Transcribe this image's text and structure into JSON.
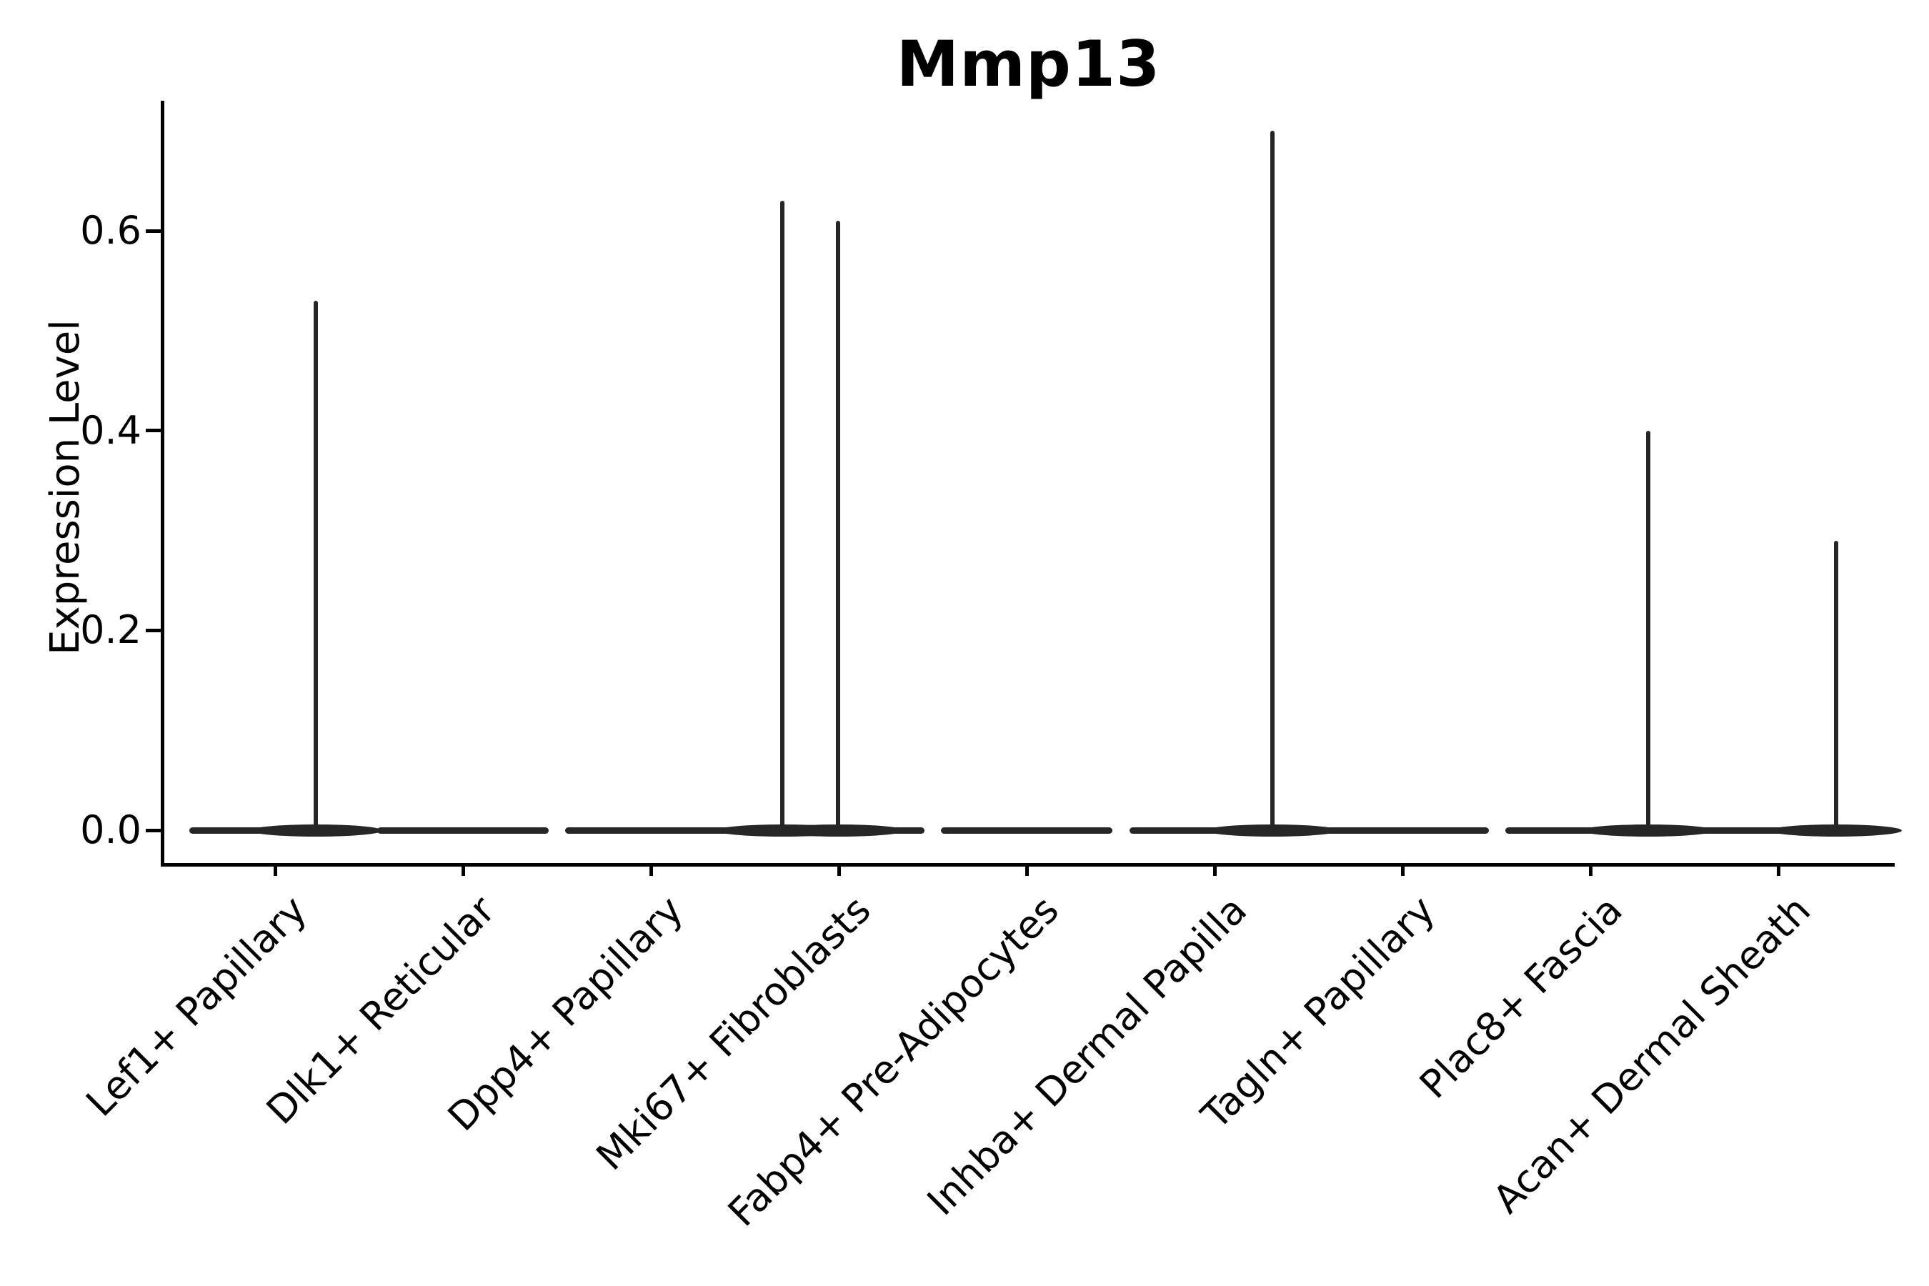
{
  "colors": {
    "background": "#ffffff",
    "axis": "#000000",
    "violin_line": "#262626",
    "text": "#000000"
  },
  "chart_data": {
    "type": "violin",
    "title": "Mmp13",
    "xlabel": "",
    "ylabel": "Expression Level",
    "ylim": [
      -0.03,
      0.73
    ],
    "grid": false,
    "legend": "none",
    "yticks": [
      {
        "label": "0.0",
        "value": 0.0
      },
      {
        "label": "0.2",
        "value": 0.2
      },
      {
        "label": "0.4",
        "value": 0.4
      },
      {
        "label": "0.6",
        "value": 0.6
      }
    ],
    "categories": [
      "Lef1+ Papillary",
      "Dlk1+ Reticular",
      "Dpp4+ Papillary",
      "Mki67+ Fibroblasts",
      "Fabp4+ Pre-Adipocytes",
      "Inhba+ Dermal Papilla",
      "Tagln+ Papillary",
      "Plac8+ Fascia",
      "Acan+ Dermal Sheath"
    ],
    "violins": [
      {
        "category": "Lef1+ Papillary",
        "base_value": 0.0,
        "spikes": [
          {
            "value": 0.53,
            "x_offset": 57
          }
        ]
      },
      {
        "category": "Dlk1+ Reticular",
        "base_value": 0.0,
        "spikes": []
      },
      {
        "category": "Dpp4+ Papillary",
        "base_value": 0.0,
        "spikes": []
      },
      {
        "category": "Mki67+ Fibroblasts",
        "base_value": 0.0,
        "spikes": [
          {
            "value": 0.63,
            "x_offset": -79
          },
          {
            "value": 0.61,
            "x_offset": -1
          }
        ]
      },
      {
        "category": "Fabp4+ Pre-Adipocytes",
        "base_value": 0.0,
        "spikes": []
      },
      {
        "category": "Inhba+ Dermal Papilla",
        "base_value": 0.0,
        "spikes": [
          {
            "value": 0.7,
            "x_offset": 80
          }
        ]
      },
      {
        "category": "Tagln+ Papillary",
        "base_value": 0.0,
        "spikes": []
      },
      {
        "category": "Plac8+ Fascia",
        "base_value": 0.0,
        "spikes": [
          {
            "value": 0.4,
            "x_offset": 80
          }
        ]
      },
      {
        "category": "Acan+ Dermal Sheath",
        "base_value": 0.0,
        "spikes": [
          {
            "value": 0.29,
            "x_offset": 80
          }
        ]
      }
    ]
  }
}
